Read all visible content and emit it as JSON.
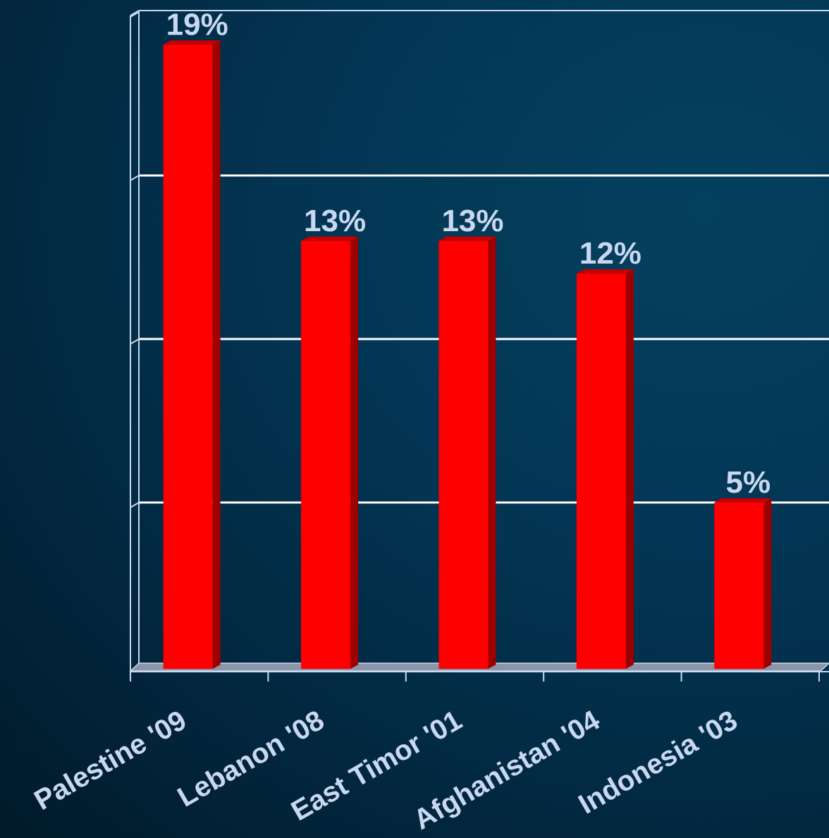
{
  "chart_data": {
    "type": "bar",
    "categories": [
      "Palestine '09",
      "Lebanon '08",
      "East Timor '01",
      "Afghanistan '04",
      "Indonesia '03"
    ],
    "values": [
      19,
      13,
      13,
      12,
      5
    ],
    "value_labels": [
      "19%",
      "13%",
      "13%",
      "12%",
      "5%"
    ],
    "ylim": [
      0,
      20
    ],
    "y_grid_step": 5,
    "grid": true,
    "colors": {
      "bar": "#ff0000",
      "bar_side": "#9c0000",
      "bar_top": "#c80000",
      "gridline": "#ffffff",
      "axis": "#c9d8f0",
      "floor": "#8a96a8"
    }
  }
}
